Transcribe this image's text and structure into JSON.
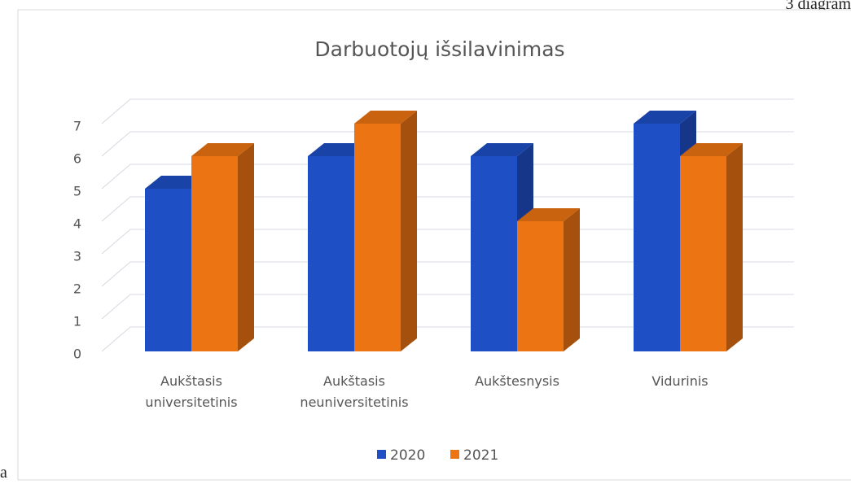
{
  "page_header": "3 diagram",
  "page_footer": "a",
  "chart_data": {
    "type": "bar3d",
    "title": "Darbuotojų išsilavinimas",
    "categories": [
      "Aukštasis universitetinis",
      "Aukštasis neuniversitetinis",
      "Aukštesnysis",
      "Vidurinis"
    ],
    "series": [
      {
        "name": "2020",
        "color": "#1f4fc4",
        "values": [
          5,
          6,
          6,
          7
        ]
      },
      {
        "name": "2021",
        "color": "#ec7412",
        "values": [
          6,
          7,
          4,
          6
        ]
      }
    ],
    "ylim": [
      0,
      7
    ],
    "yticks": [
      0,
      1,
      2,
      3,
      4,
      5,
      6,
      7
    ],
    "grid": true,
    "legend": "bottom"
  }
}
